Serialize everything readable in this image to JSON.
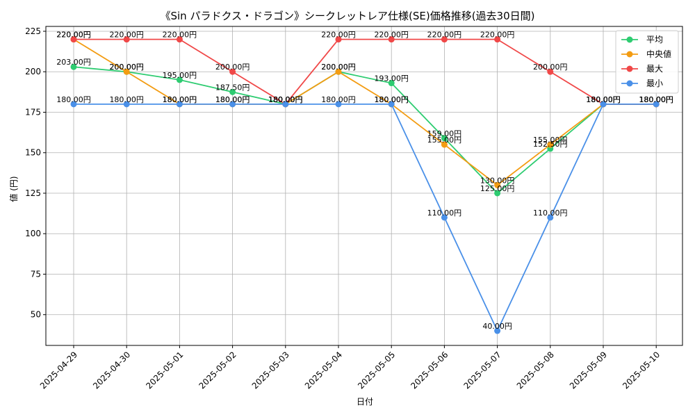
{
  "chart_data": {
    "type": "line",
    "title": "《Sin パラドクス・ドラゴン》シークレットレア仕様(SE)価格推移(過去30日間)",
    "xlabel": "日付",
    "ylabel": "値 (円)",
    "categories": [
      "2025-04-29",
      "2025-04-30",
      "2025-05-01",
      "2025-05-02",
      "2025-05-03",
      "2025-05-04",
      "2025-05-05",
      "2025-05-06",
      "2025-05-07",
      "2025-05-08",
      "2025-05-09",
      "2025-05-10"
    ],
    "ylim": [
      31,
      228
    ],
    "yticks": [
      50,
      75,
      100,
      125,
      150,
      175,
      200,
      225
    ],
    "grid": true,
    "legend_position": "top-right",
    "value_suffix": "円",
    "series": [
      {
        "name": "平均",
        "color": "#2ecc71",
        "values": [
          203,
          200,
          195,
          187.5,
          180,
          200,
          193,
          159,
          125,
          152.5,
          180,
          180
        ],
        "labels": [
          "203.00円",
          "200.00円",
          "195.00円",
          "187.50円",
          "180.00円",
          "200.00円",
          "193.00円",
          "159.00円",
          "125.00円",
          "152.50円",
          "180.00円",
          "180.00円"
        ]
      },
      {
        "name": "中央値",
        "color": "#f39c12",
        "values": [
          220,
          200,
          180,
          180,
          180,
          200,
          180,
          155,
          130,
          155,
          180,
          180
        ],
        "labels": [
          "220.00円",
          "200.00円",
          "180.00円",
          "180.00円",
          "180.00円",
          "200.00円",
          "180.00円",
          "155.00円",
          "130.00円",
          "155.00円",
          "180.00円",
          "180.00円"
        ]
      },
      {
        "name": "最大",
        "color": "#f04848",
        "values": [
          220,
          220,
          220,
          200,
          180,
          220,
          220,
          220,
          220,
          200,
          180,
          180
        ],
        "labels": [
          "220.00円",
          "220.00円",
          "220.00円",
          "200.00円",
          "180.00円",
          "220.00円",
          "220.00円",
          "220.00円",
          "220.00円",
          "200.00円",
          "180.00円",
          "180.00円"
        ]
      },
      {
        "name": "最小",
        "color": "#4a90e8",
        "values": [
          180,
          180,
          180,
          180,
          180,
          180,
          180,
          110,
          40,
          110,
          180,
          180
        ],
        "labels": [
          "180.00円",
          "180.00円",
          "180.00円",
          "180.00円",
          "180.00円",
          "180.00円",
          "180.00円",
          "110.00円",
          "40.00円",
          "110.00円",
          "180.00円",
          "180.00円"
        ]
      }
    ]
  }
}
